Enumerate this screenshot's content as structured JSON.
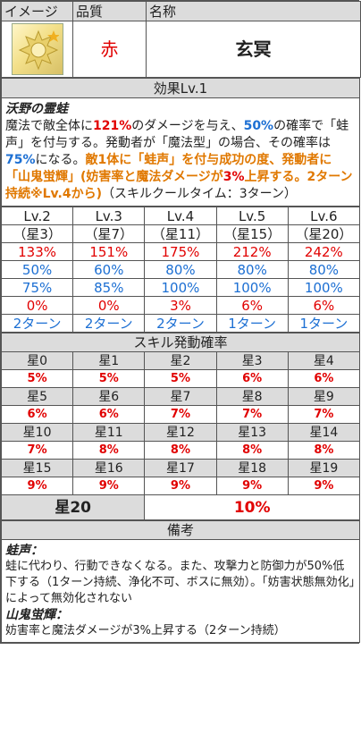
{
  "header": {
    "image_label": "イメージ",
    "quality_label": "品質",
    "name_label": "名称"
  },
  "item": {
    "quality": "赤",
    "name": "玄冥",
    "icon": "golden-gear-emblem-icon",
    "icon_colors": {
      "bg": "#f3e08a",
      "star": "#f0b020"
    }
  },
  "effect": {
    "heading": "効果Lv.1",
    "title": "沃野の霊蛙",
    "parts": [
      {
        "t": "魔法で敵全体に",
        "c": ""
      },
      {
        "t": "121%",
        "c": "red"
      },
      {
        "t": "のダメージを与え、",
        "c": ""
      },
      {
        "t": "50%",
        "c": "blue"
      },
      {
        "t": "の確率で「蛙声」を付与する。発動者が「魔法型」の場合、その確率は",
        "c": ""
      },
      {
        "t": "75%",
        "c": "blue"
      },
      {
        "t": "になる。",
        "c": ""
      },
      {
        "t": "敵1体に「蛙声」を付与成功の度、発動者に「山鬼蛍輝」(妨害率と魔法ダメージが",
        "c": "orange"
      },
      {
        "t": "3%",
        "c": "red"
      },
      {
        "t": "上昇する。2ターン持続※Lv.4から)",
        "c": "orange"
      },
      {
        "t": "（スキルクールタイム：3ターン）",
        "c": ""
      }
    ]
  },
  "levels": {
    "labels": [
      "Lv.2",
      "Lv.3",
      "Lv.4",
      "Lv.5",
      "Lv.6"
    ],
    "stars": [
      "（星3）",
      "（星7）",
      "（星11）",
      "（星15）",
      "（星20）"
    ],
    "damage": [
      "133%",
      "151%",
      "175%",
      "212%",
      "242%"
    ],
    "chance": [
      "50%",
      "60%",
      "80%",
      "80%",
      "80%"
    ],
    "magic_chance": [
      "75%",
      "85%",
      "100%",
      "100%",
      "100%"
    ],
    "buff": [
      "0%",
      "0%",
      "3%",
      "6%",
      "6%"
    ],
    "duration": [
      "2ターン",
      "2ターン",
      "2ターン",
      "1ターン",
      "1ターン"
    ]
  },
  "activation": {
    "heading": "スキル発動確率",
    "rows": [
      {
        "stars": [
          "星0",
          "星1",
          "星2",
          "星3",
          "星4"
        ],
        "rates": [
          "5%",
          "5%",
          "5%",
          "6%",
          "6%"
        ]
      },
      {
        "stars": [
          "星5",
          "星6",
          "星7",
          "星8",
          "星9"
        ],
        "rates": [
          "6%",
          "6%",
          "7%",
          "7%",
          "7%"
        ]
      },
      {
        "stars": [
          "星10",
          "星11",
          "星12",
          "星13",
          "星14"
        ],
        "rates": [
          "7%",
          "8%",
          "8%",
          "8%",
          "8%"
        ]
      },
      {
        "stars": [
          "星15",
          "星16",
          "星17",
          "星18",
          "星19"
        ],
        "rates": [
          "9%",
          "9%",
          "9%",
          "9%",
          "9%"
        ]
      }
    ],
    "final_star": "星20",
    "final_rate": "10%"
  },
  "notes": {
    "heading": "備考",
    "items": [
      {
        "title": "蛙声：",
        "text": "蛙に代わり、行動できなくなる。また、攻撃力と防御力が50%低下する（1ターン持続、浄化不可、ボスに無効）。「妨害状態無効化」によって無効化されない"
      },
      {
        "title": "山鬼蛍輝：",
        "text": "妨害率と魔法ダメージが3%上昇する（2ターン持続）"
      }
    ]
  }
}
